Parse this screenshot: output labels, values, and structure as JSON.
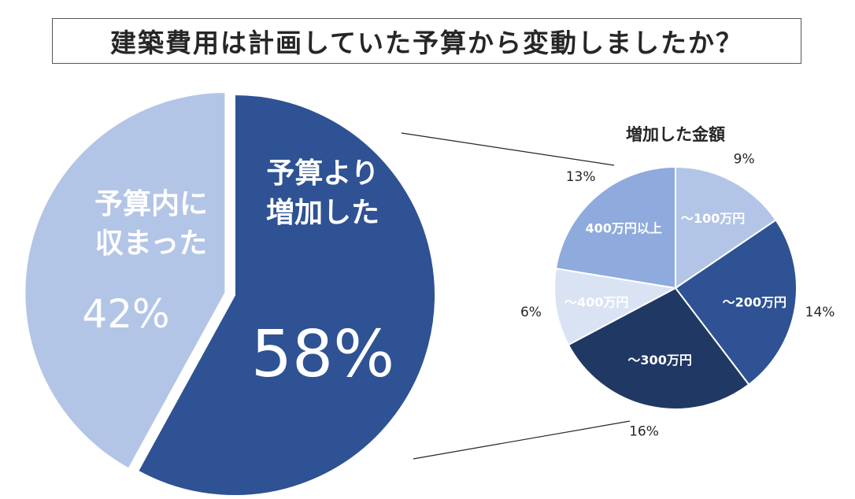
{
  "title": "建築費用は計画していた予算から変動しましたか？",
  "chart_data": [
    {
      "type": "pie",
      "slices": [
        {
          "label_lines": [
            "予算より",
            "増加した"
          ],
          "value": 58,
          "value_label": "58%",
          "color": "#2e5293"
        },
        {
          "label_lines": [
            "予算内に",
            "収まった"
          ],
          "value": 42,
          "value_label": "42%",
          "color": "#b3c5e6"
        }
      ]
    },
    {
      "type": "pie",
      "title": "増加した金額",
      "slices": [
        {
          "label": "～100万円",
          "value": 9,
          "value_label": "9%",
          "color": "#b3c5e6"
        },
        {
          "label": "～200万円",
          "value": 14,
          "value_label": "14%",
          "color": "#2e5293"
        },
        {
          "label": "～300万円",
          "value": 16,
          "value_label": "16%",
          "color": "#203864"
        },
        {
          "label": "～400万円",
          "value": 6,
          "value_label": "6%",
          "color": "#dae3f3"
        },
        {
          "label": "400万円以上",
          "value": 13,
          "value_label": "13%",
          "color": "#8faadc"
        }
      ]
    }
  ]
}
